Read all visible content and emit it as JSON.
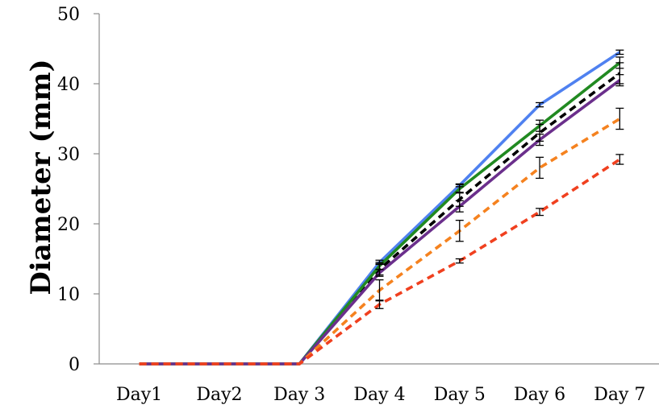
{
  "chart_data": {
    "type": "line",
    "title": "",
    "xlabel": "",
    "ylabel": "Diameter (mm)",
    "ylim": [
      0,
      50
    ],
    "yticks": [
      0,
      10,
      20,
      30,
      40,
      50
    ],
    "categories": [
      "Day1",
      "Day2",
      "Day 3",
      "Day 4",
      "Day 5",
      "Day 6",
      "Day 7"
    ],
    "grid": false,
    "legend": "none",
    "error_bars": true,
    "series": [
      {
        "color": "#4f81f0",
        "dash": "solid",
        "values": [
          0,
          0,
          0,
          14.5,
          25.5,
          37.0,
          44.5
        ],
        "errors": [
          0,
          0,
          0,
          0.3,
          0.2,
          0.3,
          0.3
        ]
      },
      {
        "color": "#000000",
        "dash": "dashed",
        "values": [
          0,
          0,
          0,
          13.5,
          23.5,
          33.0,
          41.5
        ],
        "errors": [
          0,
          0,
          0,
          0.8,
          1.0,
          1.2,
          1.5
        ]
      },
      {
        "color": "#218a21",
        "dash": "solid",
        "values": [
          0,
          0,
          0,
          14.0,
          25.0,
          34.0,
          43.0
        ],
        "errors": [
          0,
          0,
          0,
          0.5,
          0.6,
          0.8,
          0.8
        ]
      },
      {
        "color": "#6b2f8c",
        "dash": "solid",
        "values": [
          0,
          0,
          0,
          13.0,
          22.5,
          32.0,
          40.5
        ],
        "errors": [
          0,
          0,
          0,
          0.5,
          0.8,
          0.8,
          0.8
        ]
      },
      {
        "color": "#f5821f",
        "dash": "dashed",
        "values": [
          0,
          0,
          0,
          10.5,
          19.0,
          28.0,
          35.0
        ],
        "errors": [
          0,
          0,
          0,
          1.5,
          1.5,
          1.5,
          1.5
        ]
      },
      {
        "color": "#f0401f",
        "dash": "dashed",
        "values": [
          0,
          0,
          0,
          8.5,
          14.7,
          21.7,
          29.2
        ],
        "errors": [
          0,
          0,
          0,
          0.6,
          0.3,
          0.5,
          0.7
        ]
      }
    ]
  }
}
